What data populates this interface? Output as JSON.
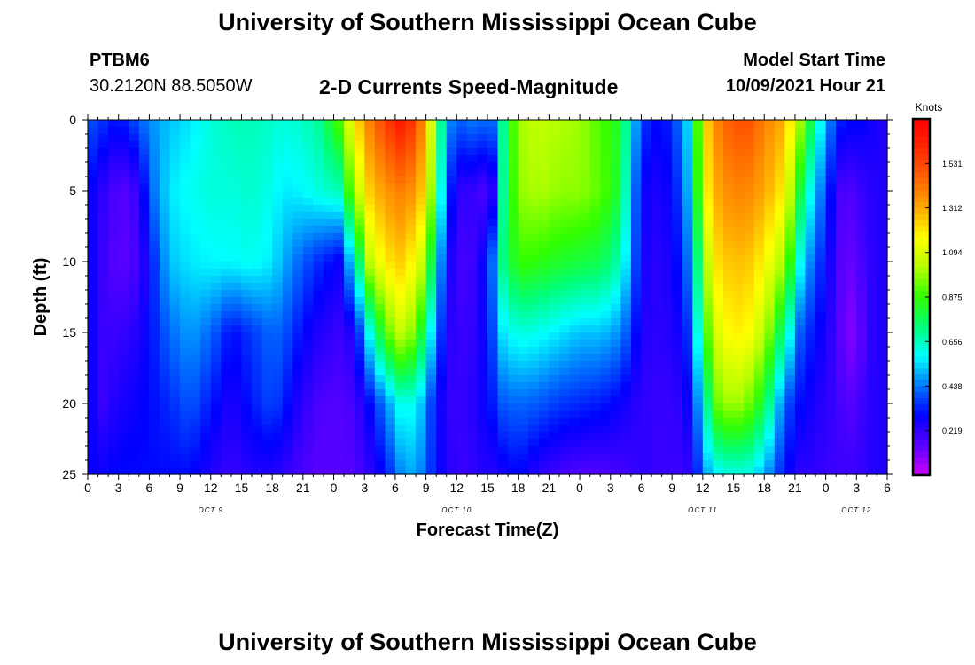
{
  "page": {
    "title_top": "University of Southern Mississippi Ocean Cube",
    "title_bottom": "University of Southern Mississippi Ocean Cube",
    "station_id": "PTBM6",
    "station_coords": "30.2120N  88.5050W",
    "subtitle": "2-D Currents Speed-Magnitude",
    "model_start_label": "Model Start Time",
    "model_start_value": "10/09/2021 Hour 21"
  },
  "chart_data": {
    "type": "heatmap",
    "title": "2-D Currents Speed-Magnitude",
    "xlabel": "Forecast Time(Z)",
    "ylabel": "Depth (ft)",
    "x_ticks": [
      "0",
      "3",
      "6",
      "9",
      "12",
      "15",
      "18",
      "21",
      "0",
      "3",
      "6",
      "9",
      "12",
      "15",
      "18",
      "21",
      "0",
      "3",
      "6",
      "9",
      "12",
      "15",
      "18",
      "21",
      "0",
      "3",
      "6"
    ],
    "x_range_hours": [
      0,
      78
    ],
    "date_labels": [
      {
        "label": "OCT 9",
        "hour": 12
      },
      {
        "label": "OCT 10",
        "hour": 36
      },
      {
        "label": "OCT 11",
        "hour": 60
      },
      {
        "label": "OCT 12",
        "hour": 75
      }
    ],
    "y_ticks": [
      "0",
      "5",
      "10",
      "15",
      "20",
      "25"
    ],
    "y_range_ft": [
      0,
      25
    ],
    "y_inverted": true,
    "colorbar": {
      "label": "Knots",
      "ticks": [
        "1.531",
        "1.312",
        "1.094",
        "0.875",
        "0.656",
        "0.438",
        "0.219"
      ],
      "range": [
        0,
        1.75
      ],
      "colors": [
        "#cc00ff",
        "#5a00ff",
        "#0000ff",
        "#0078ff",
        "#00ffff",
        "#00ff78",
        "#33ff00",
        "#b4ff00",
        "#ffff00",
        "#ffaa00",
        "#ff6400",
        "#ff2800",
        "#ff0000"
      ]
    },
    "profiles": [
      {
        "hour": 0,
        "s": [
          0.4,
          0.3,
          0.3,
          0.3,
          0.3,
          0.28
        ]
      },
      {
        "hour": 1.5,
        "s": [
          0.35,
          0.22,
          0.2,
          0.2,
          0.2,
          0.28
        ]
      },
      {
        "hour": 3,
        "s": [
          0.3,
          0.15,
          0.14,
          0.2,
          0.25,
          0.3
        ]
      },
      {
        "hour": 5,
        "s": [
          0.4,
          0.2,
          0.18,
          0.24,
          0.28,
          0.3
        ]
      },
      {
        "hour": 6,
        "s": [
          0.46,
          0.4,
          0.3,
          0.3,
          0.3,
          0.3
        ]
      },
      {
        "hour": 8,
        "s": [
          0.52,
          0.56,
          0.52,
          0.42,
          0.34,
          0.3
        ]
      },
      {
        "hour": 10,
        "s": [
          0.56,
          0.6,
          0.56,
          0.48,
          0.4,
          0.3
        ]
      },
      {
        "hour": 12,
        "s": [
          0.62,
          0.62,
          0.58,
          0.42,
          0.32,
          0.24
        ]
      },
      {
        "hour": 14,
        "s": [
          0.66,
          0.62,
          0.58,
          0.3,
          0.24,
          0.2
        ]
      },
      {
        "hour": 16,
        "s": [
          0.66,
          0.64,
          0.6,
          0.36,
          0.32,
          0.24
        ]
      },
      {
        "hour": 18,
        "s": [
          0.64,
          0.6,
          0.56,
          0.42,
          0.38,
          0.24
        ]
      },
      {
        "hour": 19,
        "s": [
          0.62,
          0.56,
          0.5,
          0.4,
          0.33,
          0.22
        ]
      },
      {
        "hour": 21,
        "s": [
          0.64,
          0.58,
          0.4,
          0.3,
          0.22,
          0.17
        ]
      },
      {
        "hour": 22.5,
        "s": [
          0.7,
          0.62,
          0.34,
          0.24,
          0.17,
          0.15
        ]
      },
      {
        "hour": 24.5,
        "s": [
          0.9,
          0.66,
          0.28,
          0.2,
          0.16,
          0.15
        ]
      },
      {
        "hour": 26,
        "s": [
          1.2,
          1.0,
          0.6,
          0.25,
          0.18,
          0.16
        ]
      },
      {
        "hour": 27.5,
        "s": [
          1.4,
          1.25,
          1.05,
          0.6,
          0.3,
          0.22
        ]
      },
      {
        "hour": 29,
        "s": [
          1.55,
          1.35,
          1.2,
          0.9,
          0.45,
          0.3
        ]
      },
      {
        "hour": 30.5,
        "s": [
          1.65,
          1.4,
          1.25,
          1.05,
          0.6,
          0.45
        ]
      },
      {
        "hour": 32,
        "s": [
          1.55,
          1.35,
          1.15,
          0.95,
          0.6,
          0.5
        ]
      },
      {
        "hour": 33,
        "s": [
          1.3,
          1.2,
          1.0,
          0.7,
          0.45,
          0.4
        ]
      },
      {
        "hour": 34,
        "s": [
          0.9,
          0.8,
          0.6,
          0.45,
          0.3,
          0.3
        ]
      },
      {
        "hour": 35,
        "s": [
          0.5,
          0.4,
          0.3,
          0.25,
          0.22,
          0.25
        ]
      },
      {
        "hour": 36,
        "s": [
          0.4,
          0.22,
          0.18,
          0.2,
          0.2,
          0.2
        ]
      },
      {
        "hour": 38,
        "s": [
          0.45,
          0.2,
          0.2,
          0.22,
          0.24,
          0.22
        ]
      },
      {
        "hour": 39,
        "s": [
          0.4,
          0.15,
          0.35,
          0.32,
          0.3,
          0.25
        ]
      },
      {
        "hour": 40,
        "s": [
          0.45,
          0.3,
          0.5,
          0.44,
          0.34,
          0.22
        ]
      },
      {
        "hour": 40.5,
        "s": [
          0.7,
          0.7,
          0.72,
          0.56,
          0.4,
          0.26
        ]
      },
      {
        "hour": 42,
        "s": [
          1.0,
          0.98,
          0.88,
          0.62,
          0.42,
          0.3
        ]
      },
      {
        "hour": 44,
        "s": [
          1.05,
          1.02,
          0.86,
          0.6,
          0.4,
          0.22
        ]
      },
      {
        "hour": 46,
        "s": [
          1.02,
          0.98,
          0.82,
          0.56,
          0.36,
          0.18
        ]
      },
      {
        "hour": 48,
        "s": [
          1.0,
          0.98,
          0.8,
          0.52,
          0.34,
          0.16
        ]
      },
      {
        "hour": 50,
        "s": [
          0.9,
          0.92,
          0.78,
          0.52,
          0.32,
          0.16
        ]
      },
      {
        "hour": 52,
        "s": [
          0.82,
          0.8,
          0.66,
          0.46,
          0.28,
          0.18
        ]
      },
      {
        "hour": 53,
        "s": [
          0.6,
          0.52,
          0.48,
          0.36,
          0.24,
          0.2
        ]
      },
      {
        "hour": 54,
        "s": [
          0.36,
          0.28,
          0.26,
          0.24,
          0.22,
          0.22
        ]
      },
      {
        "hour": 56,
        "s": [
          0.28,
          0.24,
          0.22,
          0.22,
          0.2,
          0.2
        ]
      },
      {
        "hour": 57.5,
        "s": [
          0.4,
          0.34,
          0.3,
          0.26,
          0.22,
          0.2
        ]
      },
      {
        "hour": 59,
        "s": [
          0.6,
          0.56,
          0.48,
          0.38,
          0.3,
          0.22
        ]
      },
      {
        "hour": 60,
        "s": [
          1.2,
          1.15,
          0.98,
          0.84,
          0.62,
          0.46
        ]
      },
      {
        "hour": 61.5,
        "s": [
          1.4,
          1.32,
          1.22,
          1.1,
          0.94,
          0.58
        ]
      },
      {
        "hour": 63,
        "s": [
          1.5,
          1.4,
          1.28,
          1.2,
          1.02,
          0.62
        ]
      },
      {
        "hour": 64.5,
        "s": [
          1.5,
          1.38,
          1.26,
          1.16,
          0.94,
          0.6
        ]
      },
      {
        "hour": 66,
        "s": [
          1.4,
          1.32,
          1.18,
          1.04,
          0.8,
          0.5
        ]
      },
      {
        "hour": 68,
        "s": [
          1.3,
          1.18,
          1.0,
          0.7,
          0.4,
          0.3
        ]
      },
      {
        "hour": 69.5,
        "s": [
          1.0,
          0.8,
          0.6,
          0.4,
          0.3,
          0.22
        ]
      },
      {
        "hour": 71,
        "s": [
          0.7,
          0.5,
          0.38,
          0.3,
          0.25,
          0.22
        ]
      },
      {
        "hour": 72,
        "s": [
          0.5,
          0.4,
          0.32,
          0.26,
          0.22,
          0.2
        ]
      },
      {
        "hour": 73,
        "s": [
          0.35,
          0.2,
          0.18,
          0.18,
          0.2,
          0.2
        ]
      },
      {
        "hour": 74,
        "s": [
          0.3,
          0.15,
          0.12,
          0.1,
          0.15,
          0.2
        ]
      },
      {
        "hour": 75,
        "s": [
          0.3,
          0.18,
          0.15,
          0.1,
          0.16,
          0.2
        ]
      },
      {
        "hour": 76,
        "s": [
          0.28,
          0.22,
          0.2,
          0.2,
          0.22,
          0.22
        ]
      },
      {
        "hour": 77,
        "s": [
          0.25,
          0.24,
          0.24,
          0.24,
          0.24,
          0.24
        ]
      },
      {
        "hour": 78,
        "s": [
          0.24,
          0.24,
          0.24,
          0.24,
          0.24,
          0.24
        ]
      }
    ],
    "profile_depths_ft": [
      0,
      5,
      10,
      15,
      20,
      25
    ]
  }
}
